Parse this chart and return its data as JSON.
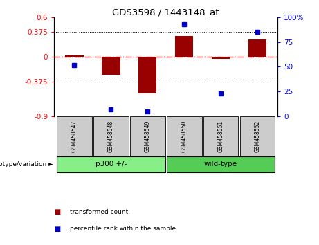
{
  "title": "GDS3598 / 1443148_at",
  "samples": [
    "GSM458547",
    "GSM458548",
    "GSM458549",
    "GSM458550",
    "GSM458551",
    "GSM458552"
  ],
  "transformed_count": [
    0.02,
    -0.27,
    -0.55,
    0.32,
    -0.03,
    0.26
  ],
  "percentile_rank": [
    52,
    7,
    5,
    93,
    23,
    85
  ],
  "ylim_left": [
    -0.9,
    0.6
  ],
  "ylim_right": [
    0,
    100
  ],
  "yticks_left": [
    -0.9,
    -0.375,
    0,
    0.375,
    0.6
  ],
  "ytick_labels_left": [
    "-0.9",
    "-0.375",
    "0",
    "0.375",
    "0.6"
  ],
  "yticks_right": [
    0,
    25,
    50,
    75,
    100
  ],
  "ytick_labels_right": [
    "0",
    "25",
    "50",
    "75",
    "100%"
  ],
  "hlines": [
    0.375,
    -0.375
  ],
  "bar_color": "#990000",
  "dot_color": "#0000cc",
  "zero_line_color": "#cc0000",
  "groups": [
    {
      "label": "p300 +/-",
      "samples": [
        0,
        1,
        2
      ],
      "color": "#88ee88"
    },
    {
      "label": "wild-type",
      "samples": [
        3,
        4,
        5
      ],
      "color": "#55cc55"
    }
  ],
  "group_row_label": "genotype/variation ►",
  "legend_items": [
    {
      "label": "transformed count",
      "color": "#990000"
    },
    {
      "label": "percentile rank within the sample",
      "color": "#0000cc"
    }
  ],
  "bar_width": 0.5,
  "dot_size": 5
}
